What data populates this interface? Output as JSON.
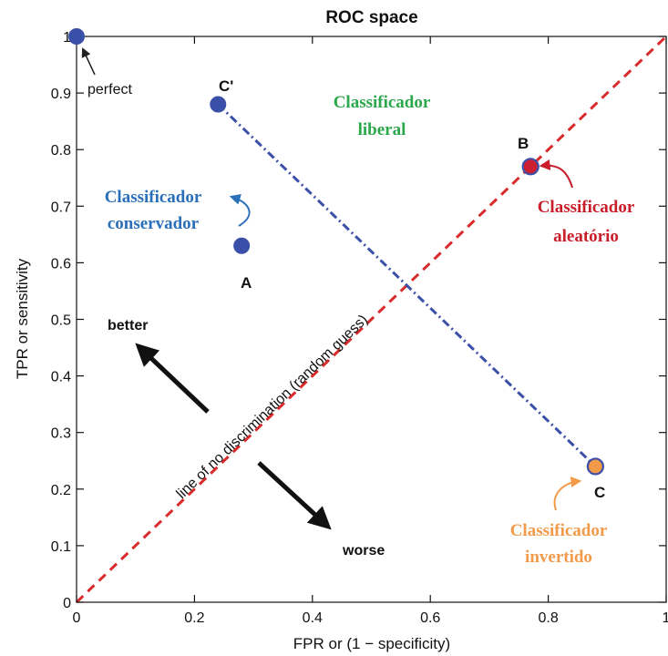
{
  "chart_data": {
    "type": "scatter",
    "title": "ROC space",
    "xlabel": "FPR or (1 − specificity)",
    "ylabel": "TPR or sensitivity",
    "xlim": [
      0,
      1
    ],
    "ylim": [
      0,
      1
    ],
    "grid": false,
    "x_ticks": [
      {
        "value": 0,
        "label": "0"
      },
      {
        "value": 0.2,
        "label": "0.2"
      },
      {
        "value": 0.4,
        "label": "0.4"
      },
      {
        "value": 0.6,
        "label": "0.6"
      },
      {
        "value": 0.8,
        "label": "0.8"
      },
      {
        "value": 1,
        "label": "1"
      }
    ],
    "y_ticks": [
      {
        "value": 0,
        "label": "0"
      },
      {
        "value": 0.1,
        "label": "0.1"
      },
      {
        "value": 0.2,
        "label": "0.2"
      },
      {
        "value": 0.3,
        "label": "0.3"
      },
      {
        "value": 0.4,
        "label": "0.4"
      },
      {
        "value": 0.5,
        "label": "0.5"
      },
      {
        "value": 0.6,
        "label": "0.6"
      },
      {
        "value": 0.7,
        "label": "0.7"
      },
      {
        "value": 0.8,
        "label": "0.8"
      },
      {
        "value": 0.9,
        "label": "0.9"
      },
      {
        "value": 1,
        "label": "1"
      }
    ],
    "points": [
      {
        "label": "perfect",
        "x": 0,
        "y": 1,
        "color": "#3a4fa8"
      },
      {
        "label": "C'",
        "x": 0.24,
        "y": 0.88,
        "color": "#3a4fa8"
      },
      {
        "label": "A",
        "x": 0.28,
        "y": 0.63,
        "color": "#3a4fa8"
      },
      {
        "label": "B",
        "x": 0.77,
        "y": 0.77,
        "color": "#cc2030",
        "outline": "#3a4fa8"
      },
      {
        "label": "C",
        "x": 0.88,
        "y": 0.24,
        "color": "#f39a4a",
        "outline": "#3a4fa8"
      }
    ],
    "diagonal": {
      "label": "line of no discrimination (random guess)",
      "from": [
        0,
        0
      ],
      "to": [
        1,
        1
      ],
      "color": "#d92b2b"
    },
    "reflection_line": {
      "from": [
        0.24,
        0.88
      ],
      "to": [
        0.88,
        0.24
      ],
      "color": "#3a4fa8"
    },
    "annotations": {
      "better": "better",
      "worse": "worse",
      "liberal": {
        "line1": "Classificador",
        "line2": "liberal",
        "color": "#2aa84a"
      },
      "conservador": {
        "line1": "Classificador",
        "line2": "conservador",
        "color": "#2a6fba"
      },
      "aleatorio": {
        "line1": "Classificador",
        "line2": "aleatório",
        "color": "#c81e2a"
      },
      "invertido": {
        "line1": "Classificador",
        "line2": "invertido",
        "color": "#f39a4a"
      }
    }
  }
}
